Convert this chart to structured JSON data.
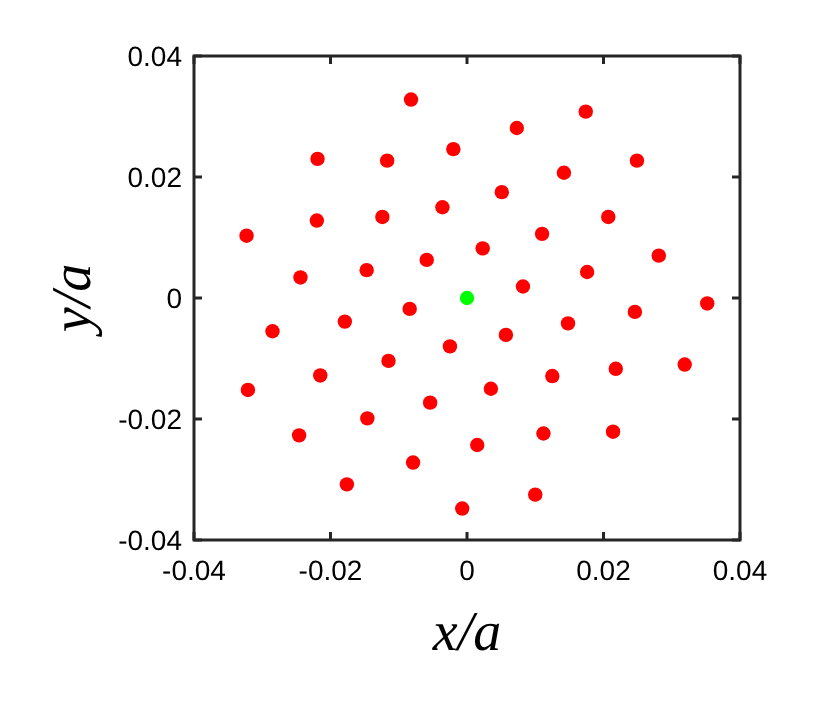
{
  "chart_data": {
    "type": "scatter",
    "xlabel": "x/a",
    "ylabel": "y/a",
    "xlim": [
      -0.04,
      0.04
    ],
    "ylim": [
      -0.04,
      0.04
    ],
    "xticks": [
      -0.04,
      -0.02,
      0,
      0.02,
      0.04
    ],
    "yticks": [
      -0.04,
      -0.02,
      0,
      0.02,
      0.04
    ],
    "grid": false,
    "marker": "circle",
    "series": [
      {
        "color": "#ff0000",
        "x": [
          -0.0082,
          -0.0219,
          -0.0117,
          -0.002,
          -0.022,
          -0.0124,
          -0.0036,
          -0.0323,
          -0.0244,
          -0.0147,
          -0.0059,
          0.0023,
          -0.0084,
          0.0174,
          0.0073,
          0.0249,
          0.0142,
          0.0051,
          0.0207,
          0.011,
          0.0281,
          0.0176,
          0.0082,
          0.0352,
          0.0246,
          -0.0285,
          -0.0179,
          -0.0025,
          -0.0115,
          -0.0215,
          -0.0321,
          -0.0054,
          -0.0146,
          -0.0246,
          0.0015,
          -0.0079,
          -0.0176,
          -0.0007,
          0.0148,
          0.0057,
          0.0319,
          0.0218,
          0.0125,
          0.0035,
          0.0214,
          0.0112,
          0.01
        ],
        "values": [
          0.0328,
          0.023,
          0.0227,
          0.0246,
          0.0128,
          0.0134,
          0.015,
          0.0103,
          0.0034,
          0.0046,
          0.0063,
          0.0082,
          -0.0018,
          0.0308,
          0.0281,
          0.0227,
          0.0207,
          0.0175,
          0.0134,
          0.0106,
          0.007,
          0.0043,
          0.0019,
          -0.0009,
          -0.0023,
          -0.0055,
          -0.0039,
          -0.008,
          -0.0104,
          -0.0128,
          -0.0152,
          -0.0173,
          -0.0199,
          -0.0227,
          -0.0243,
          -0.0272,
          -0.0308,
          -0.0348,
          -0.0042,
          -0.0061,
          -0.011,
          -0.0117,
          -0.0129,
          -0.015,
          -0.0221,
          -0.0224,
          -0.0325
        ]
      },
      {
        "color": "#00ff00",
        "x": [
          0
        ],
        "values": [
          0
        ]
      }
    ]
  }
}
